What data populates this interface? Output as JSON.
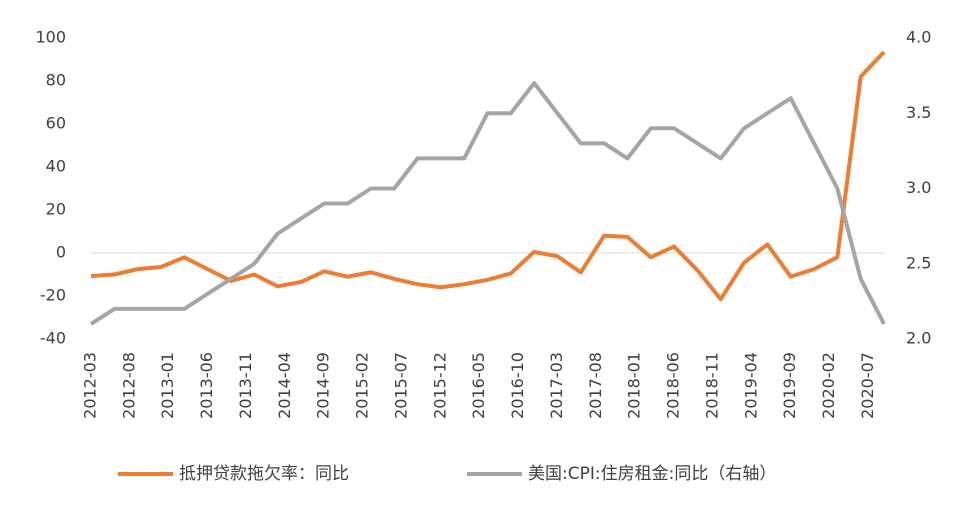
{
  "chart_data": {
    "type": "line",
    "x": [
      "2012-03",
      "2012-06",
      "2012-09",
      "2012-12",
      "2013-03",
      "2013-06",
      "2013-09",
      "2013-12",
      "2014-03",
      "2014-06",
      "2014-09",
      "2014-12",
      "2015-03",
      "2015-06",
      "2015-09",
      "2015-12",
      "2016-03",
      "2016-06",
      "2016-09",
      "2016-12",
      "2017-03",
      "2017-06",
      "2017-09",
      "2017-12",
      "2018-03",
      "2018-06",
      "2018-09",
      "2018-12",
      "2019-03",
      "2019-06",
      "2019-09",
      "2019-12",
      "2020-03",
      "2020-06",
      "2020-09"
    ],
    "xlim": [
      "2012-03",
      "2020-09"
    ],
    "xticks": [
      "2012-03",
      "2012-08",
      "2013-01",
      "2013-06",
      "2013-11",
      "2014-04",
      "2014-09",
      "2015-02",
      "2015-07",
      "2015-12",
      "2016-05",
      "2016-10",
      "2017-03",
      "2017-08",
      "2018-01",
      "2018-06",
      "2018-11",
      "2019-04",
      "2019-09",
      "2020-02",
      "2020-07"
    ],
    "ylim": [
      -40,
      100
    ],
    "yticks": [
      -40,
      -20,
      0,
      20,
      40,
      60,
      80,
      100
    ],
    "y2lim": [
      2.0,
      4.0
    ],
    "y2ticks": [
      {
        "value": 2.0,
        "label": "2.0"
      },
      {
        "value": 2.5,
        "label": "2.5"
      },
      {
        "value": 3.0,
        "label": "3.0"
      },
      {
        "value": 3.5,
        "label": "3.5"
      },
      {
        "value": 4.0,
        "label": "4.0"
      }
    ],
    "series": [
      {
        "name": "抵押贷款拖欠率：同比",
        "color": "#ed7d31",
        "values": [
          -10.7,
          -10,
          -7.5,
          -6.5,
          -2,
          -7.5,
          -13,
          -10,
          -15.5,
          -13.5,
          -8.5,
          -11,
          -9,
          -12,
          -14.5,
          -16,
          -14.5,
          -12.5,
          -9.5,
          0.5,
          -1.5,
          -9,
          8,
          7.5,
          -2,
          3,
          -8,
          -21.5,
          -4.5,
          4,
          -11,
          -7.5,
          -2,
          82,
          93.5
        ]
      },
      {
        "name": "美国:CPI:住房租金:同比（右轴）",
        "color": "#a5a5a5",
        "axis": "y2",
        "values": [
          2.1,
          2.2,
          2.2,
          2.2,
          2.2,
          2.3,
          2.4,
          2.5,
          2.7,
          2.8,
          2.9,
          2.9,
          3.0,
          3.0,
          3.2,
          3.2,
          3.2,
          3.5,
          3.5,
          3.7,
          3.5,
          3.3,
          3.3,
          3.2,
          3.4,
          3.4,
          3.3,
          3.2,
          3.4,
          3.5,
          3.6,
          3.3,
          3.0,
          2.4,
          2.1
        ]
      }
    ]
  }
}
